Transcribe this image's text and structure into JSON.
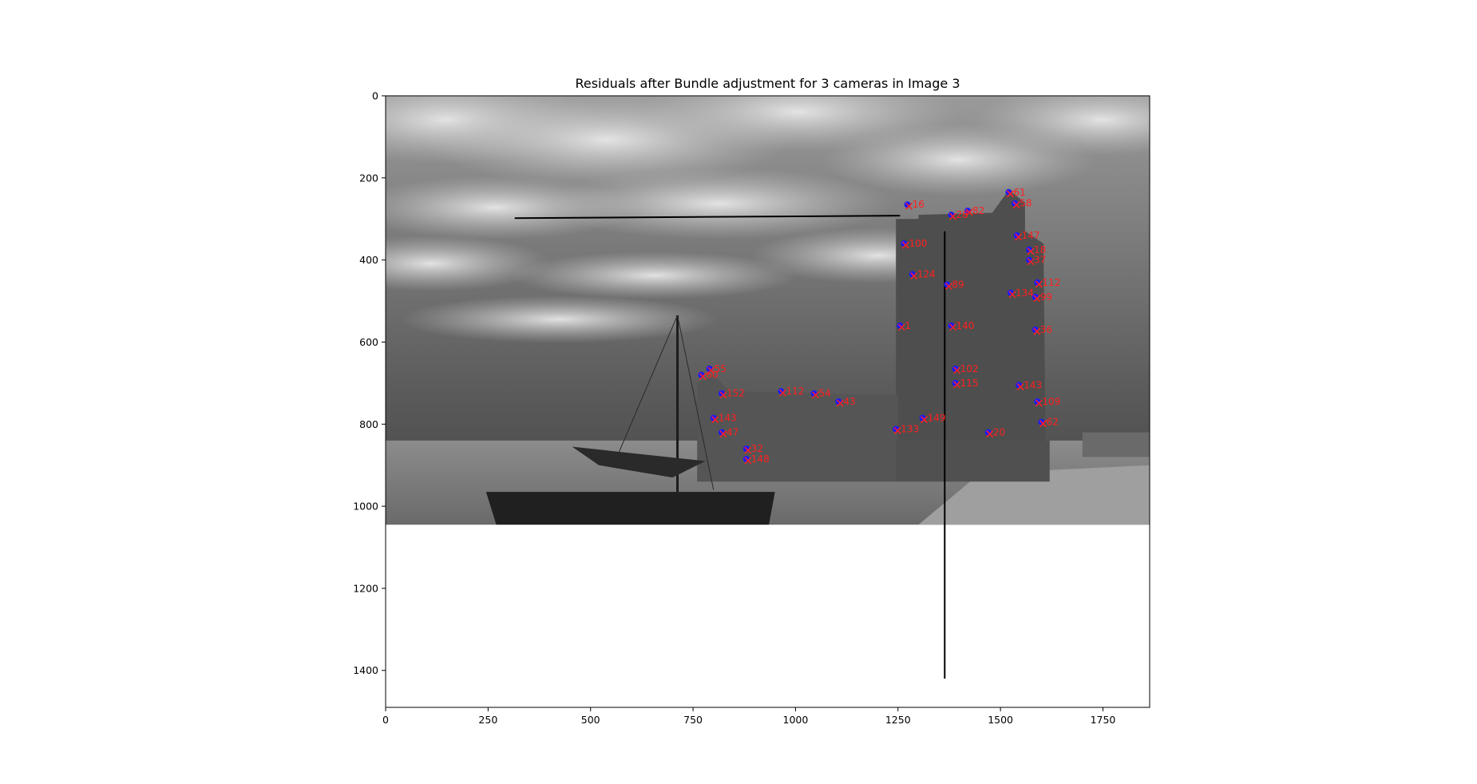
{
  "chart_data": {
    "type": "scatter",
    "title": "Residuals after Bundle adjustment for 3 cameras in Image 3",
    "xlabel": "",
    "ylabel": "",
    "xlim": [
      0,
      1864
    ],
    "ylim": [
      1490,
      0
    ],
    "xticks": [
      0,
      250,
      500,
      750,
      1000,
      1250,
      1500,
      1750
    ],
    "yticks": [
      0,
      200,
      400,
      600,
      800,
      1000,
      1200,
      1400
    ],
    "xtick_labels": [
      "0",
      "250",
      "500",
      "750",
      "1000",
      "1250",
      "1500",
      "1750"
    ],
    "ytick_labels": [
      "0",
      "200",
      "400",
      "600",
      "800",
      "1000",
      "1200",
      "1400"
    ],
    "grid": false,
    "background_image": {
      "description_ref": "grayscale photo of a tower and a sailing boat under cloudy sky",
      "extent": {
        "x": [
          0,
          1864
        ],
        "y": [
          0,
          1045
        ]
      }
    },
    "lines": [
      {
        "x": [
          315,
          1255
        ],
        "y": [
          298,
          292
        ],
        "color": "#000000"
      },
      {
        "x": [
          1364,
          1364
        ],
        "y": [
          330,
          1420
        ],
        "color": "#000000"
      }
    ],
    "markers": {
      "observed": "#1a1aff",
      "projected": "#ff2020"
    },
    "points": [
      {
        "id": "16",
        "x": 1273,
        "y": 265
      },
      {
        "id": "61",
        "x": 1520,
        "y": 235
      },
      {
        "id": "58",
        "x": 1535,
        "y": 262
      },
      {
        "id": "82",
        "x": 1420,
        "y": 280
      },
      {
        "id": "28",
        "x": 1380,
        "y": 290
      },
      {
        "id": "147",
        "x": 1540,
        "y": 340
      },
      {
        "id": "100",
        "x": 1265,
        "y": 360
      },
      {
        "id": "18",
        "x": 1570,
        "y": 375
      },
      {
        "id": "37",
        "x": 1570,
        "y": 400
      },
      {
        "id": "124",
        "x": 1285,
        "y": 435
      },
      {
        "id": "112",
        "x": 1590,
        "y": 455
      },
      {
        "id": "89",
        "x": 1370,
        "y": 460
      },
      {
        "id": "134",
        "x": 1525,
        "y": 480
      },
      {
        "id": "99",
        "x": 1585,
        "y": 490
      },
      {
        "id": "140",
        "x": 1380,
        "y": 560
      },
      {
        "id": "1",
        "x": 1255,
        "y": 560
      },
      {
        "id": "36",
        "x": 1585,
        "y": 570
      },
      {
        "id": "102",
        "x": 1390,
        "y": 665
      },
      {
        "id": "115",
        "x": 1390,
        "y": 700
      },
      {
        "id": "143",
        "x": 1545,
        "y": 705
      },
      {
        "id": "54",
        "x": 1045,
        "y": 725
      },
      {
        "id": "112b",
        "x": 965,
        "y": 720
      },
      {
        "id": "152",
        "x": 820,
        "y": 725
      },
      {
        "id": "60",
        "x": 770,
        "y": 680
      },
      {
        "id": "55",
        "x": 790,
        "y": 665
      },
      {
        "id": "43",
        "x": 1105,
        "y": 745
      },
      {
        "id": "109",
        "x": 1590,
        "y": 745
      },
      {
        "id": "143b",
        "x": 800,
        "y": 785
      },
      {
        "id": "149",
        "x": 1310,
        "y": 785
      },
      {
        "id": "133",
        "x": 1245,
        "y": 812
      },
      {
        "id": "47",
        "x": 820,
        "y": 820
      },
      {
        "id": "62",
        "x": 1600,
        "y": 795
      },
      {
        "id": "32",
        "x": 880,
        "y": 860
      },
      {
        "id": "148",
        "x": 880,
        "y": 885
      },
      {
        "id": "20",
        "x": 1470,
        "y": 820
      }
    ]
  }
}
